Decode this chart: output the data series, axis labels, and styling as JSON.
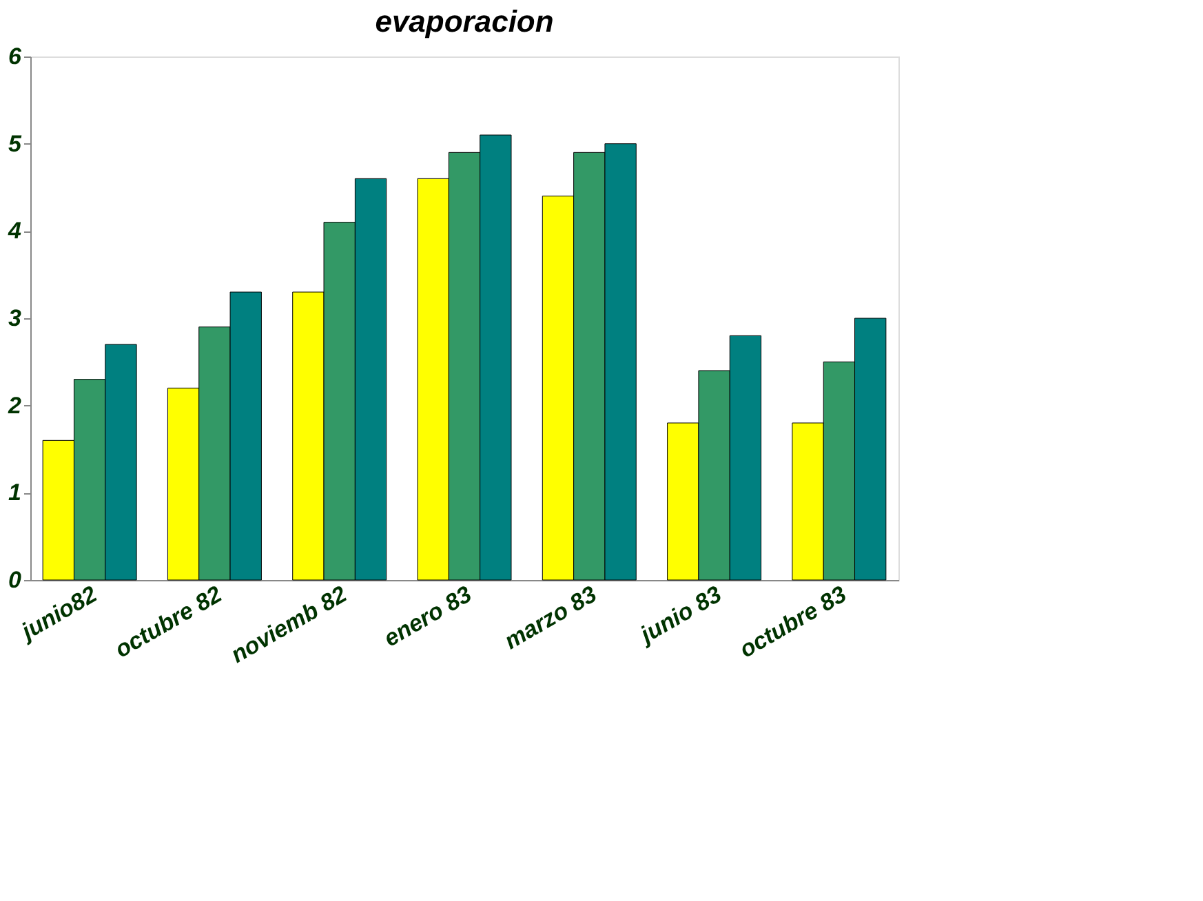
{
  "chart_data": {
    "type": "bar",
    "title": "evaporacion",
    "categories": [
      "junio82",
      "octubre 82",
      "noviemb 82",
      "enero 83",
      "marzo 83",
      "junio 83",
      "octubre 83"
    ],
    "series": [
      {
        "color": "#ffff00",
        "values": [
          1.6,
          2.2,
          3.3,
          4.6,
          4.4,
          1.8,
          1.8
        ]
      },
      {
        "color": "#339966",
        "values": [
          2.3,
          2.9,
          4.1,
          4.9,
          4.9,
          2.4,
          2.5
        ]
      },
      {
        "color": "#008080",
        "values": [
          2.7,
          3.3,
          4.6,
          5.1,
          5.0,
          2.8,
          3.0
        ]
      }
    ],
    "ylim": [
      0,
      6
    ],
    "yticks": [
      0,
      1,
      2,
      3,
      4,
      5,
      6
    ],
    "grid": false,
    "legend": false
  }
}
